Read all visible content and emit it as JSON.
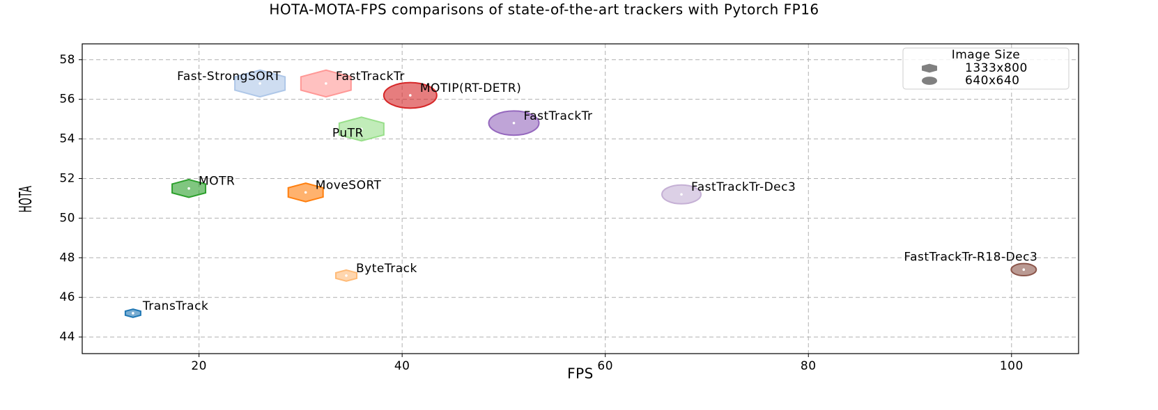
{
  "chart_data": {
    "type": "scatter",
    "title": "HOTA-MOTA-FPS comparisons of state-of-the-art trackers with Pytorch FP16",
    "x_label": "FPS",
    "y_label": "HOTA",
    "labels": [
      "TransTrack",
      "MOTR",
      "Fast-StrongSORT",
      "FastTrackTr",
      "MOTIP(RT-DETR)",
      "PuTR",
      "MoveSORT",
      "ByteTrack",
      "FastTrackTr",
      "FastTrackTr-Dec3",
      "FastTrackTr-R18-Dec3"
    ],
    "x": [
      13.5,
      19,
      26,
      32.5,
      40.8,
      36,
      30.5,
      34.5,
      51,
      67.5,
      101.2
    ],
    "values": [
      45.2,
      51.5,
      56.8,
      56.8,
      56.2,
      54.5,
      51.3,
      47.1,
      54.8,
      51.2,
      47.4
    ],
    "sizes": [
      11,
      24,
      36,
      36,
      38,
      32,
      25,
      15,
      36,
      28,
      18
    ],
    "colors": [
      "#1f77b4",
      "#2ca02c",
      "#aec7e8",
      "#ff9896",
      "#d62728",
      "#98df8a",
      "#ff7f0e",
      "#ffbb78",
      "#9467bd",
      "#c5b0d5",
      "#8c564b"
    ],
    "markers": [
      "hexagon",
      "hexagon",
      "hexagon",
      "hexagon",
      "circle",
      "hexagon",
      "hexagon",
      "hexagon",
      "circle",
      "circle",
      "circle"
    ],
    "xlim": [
      8.5,
      106.6
    ],
    "ylim": [
      43.16,
      58.8
    ],
    "xticks": [
      20,
      40,
      60,
      80,
      100
    ],
    "yticks": [
      44,
      46,
      48,
      50,
      52,
      54,
      56,
      58
    ],
    "grid": true,
    "legend": {
      "title": "Image Size",
      "location": "upper right",
      "color": "#808080",
      "entries": [
        {
          "label": "1333x800",
          "marker": "hexagon"
        },
        {
          "label": "640x640",
          "marker": "circle"
        }
      ]
    }
  }
}
